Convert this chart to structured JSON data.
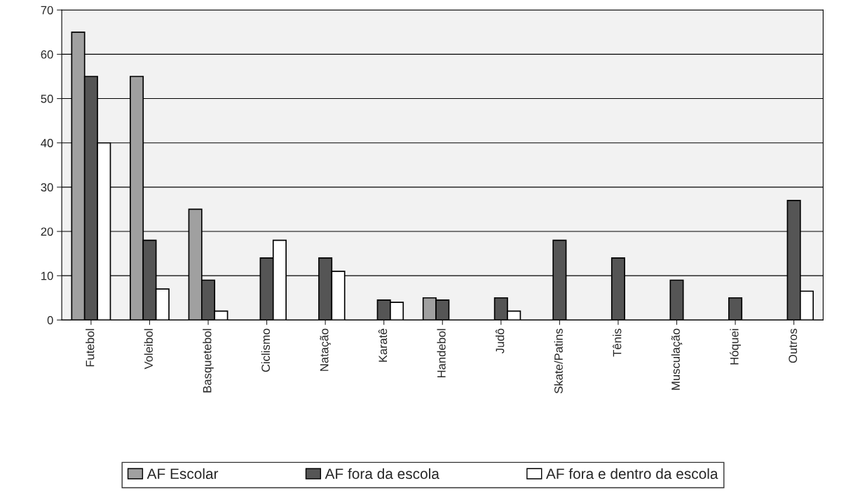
{
  "chart_data": {
    "type": "bar",
    "categories": [
      "Futebol",
      "Voleibol",
      "Basquetebol",
      "Ciclismo",
      "Natação",
      "Karatê",
      "Handebol",
      "Judô",
      "Skate/Patins",
      "Tênis",
      "Musculação",
      "Hóquei",
      "Outros"
    ],
    "series": [
      {
        "name": "AF Escolar",
        "color": "#a0a0a0",
        "values": [
          65,
          55,
          25,
          null,
          null,
          null,
          5,
          null,
          null,
          null,
          null,
          null,
          null
        ]
      },
      {
        "name": "AF fora da escola",
        "color": "#555555",
        "values": [
          55,
          18,
          9,
          14,
          14,
          4.5,
          4.5,
          5,
          18,
          14,
          9,
          5,
          27
        ]
      },
      {
        "name": "AF fora e dentro da escola",
        "color": "#ffffff",
        "values": [
          40,
          7,
          2,
          18,
          11,
          4,
          null,
          2,
          null,
          null,
          null,
          null,
          6.5
        ]
      }
    ],
    "ylim": [
      0,
      70
    ],
    "yticks": [
      0,
      10,
      20,
      30,
      40,
      50,
      60,
      70
    ],
    "grid": "y",
    "legend": "bottom"
  }
}
